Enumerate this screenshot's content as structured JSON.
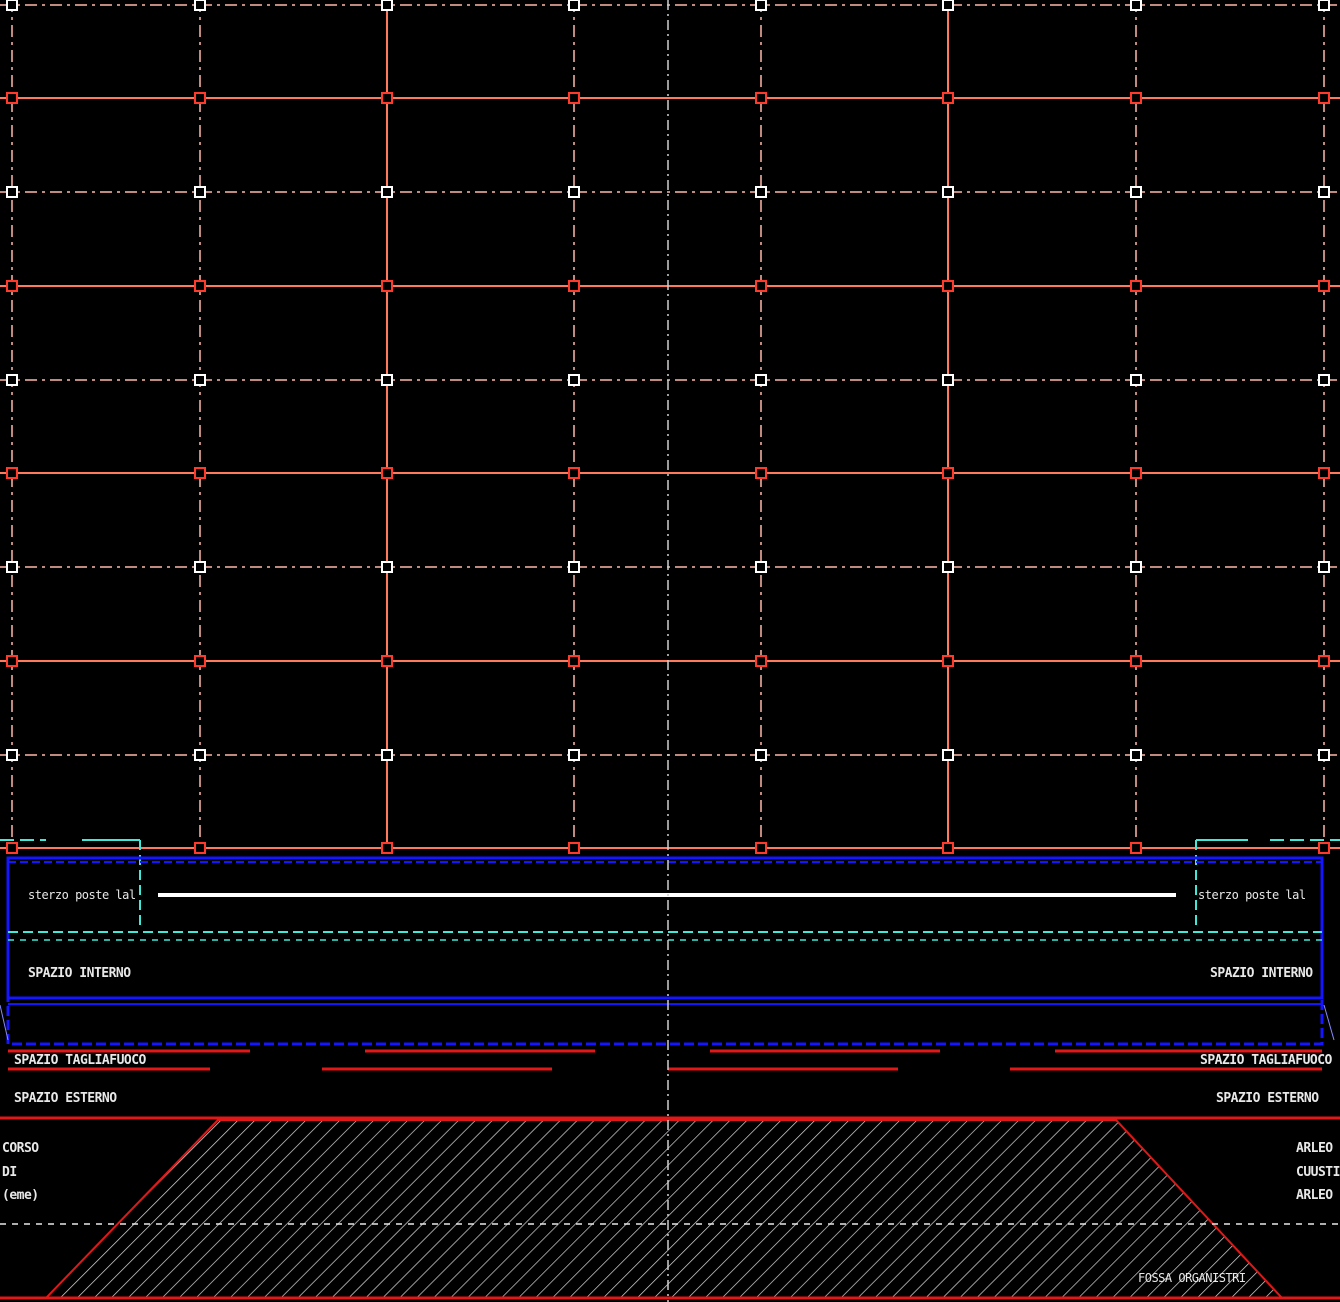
{
  "colors": {
    "background": "#000000",
    "grid_line": "#ff7a5c",
    "grid_dash": "#ffb8a8",
    "node_white": "#ffffff",
    "node_red": "#ff3a2a",
    "blue_band": "#1515ff",
    "cyan": "#40e8d8",
    "red_line": "#e01818",
    "hatch": "#d8d8d8",
    "centerline": "#cfcfcf",
    "text": "#e8e8e8"
  },
  "labels": {
    "slab_left": "sterzo poste lal",
    "slab_right": "sterzo poste lal",
    "inner_left": "SPAZIO INTERNO",
    "inner_right": "SPAZIO INTERNO",
    "fire_left": "SPAZIO TAGLIAFUOCO",
    "fire_right": "SPAZIO TAGLIAFUOCO",
    "ext_left": "SPAZIO ESTERNO",
    "ext_right": "SPAZIO ESTERNO",
    "legend_left": [
      "CORSO",
      "DI",
      "(eme)"
    ],
    "legend_right": [
      "ARLEO",
      "CUUSTI",
      "ARLEO"
    ],
    "ditch": "FOSSA ORGANISTRI"
  },
  "icons": {
    "grid_node": "square-node-icon"
  }
}
